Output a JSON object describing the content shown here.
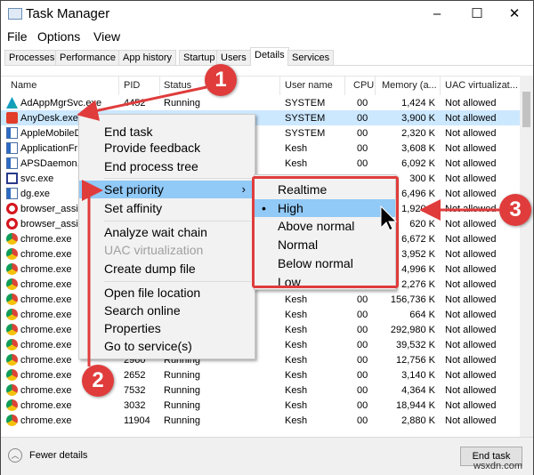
{
  "window": {
    "title": "Task Manager",
    "controls": [
      "–",
      "☐",
      "✕"
    ]
  },
  "menubar": [
    "File",
    "Options",
    "View"
  ],
  "tabs": [
    {
      "label": "Processes"
    },
    {
      "label": "Performance"
    },
    {
      "label": "App history"
    },
    {
      "label": "Startup"
    },
    {
      "label": "Users"
    },
    {
      "label": "Details",
      "active": true
    },
    {
      "label": "Services"
    }
  ],
  "columns": [
    "Name",
    "PID",
    "Status",
    "User name",
    "CPU",
    "Memory (a...",
    "UAC virtualizat..."
  ],
  "rows": [
    {
      "name": "AdAppMgrSvc.exe",
      "pid": "4452",
      "status": "Running",
      "user": "SYSTEM",
      "cpu": "00",
      "mem": "1,424 K",
      "uac": "Not allowed",
      "icon": "autodesk"
    },
    {
      "name": "AnyDesk.exe",
      "pid": "4100",
      "status": "Running",
      "user": "SYSTEM",
      "cpu": "00",
      "mem": "3,900 K",
      "uac": "Not allowed",
      "icon": "anydesk",
      "selected": true
    },
    {
      "name": "AppleMobileD",
      "pid": "",
      "status": "",
      "user": "SYSTEM",
      "cpu": "00",
      "mem": "2,320 K",
      "uac": "Not allowed",
      "icon": "app"
    },
    {
      "name": "ApplicationFr",
      "pid": "",
      "status": "",
      "user": "Kesh",
      "cpu": "00",
      "mem": "3,608 K",
      "uac": "Not allowed",
      "icon": "app"
    },
    {
      "name": "APSDaemon.exe",
      "pid": "",
      "status": "",
      "user": "Kesh",
      "cpu": "00",
      "mem": "6,092 K",
      "uac": "Not allowed",
      "icon": "app"
    },
    {
      "name": "svc.exe",
      "pid": "",
      "status": "",
      "user": "",
      "cpu": "",
      "mem": "300 K",
      "uac": "Not allowed",
      "icon": "window"
    },
    {
      "name": "dg.exe",
      "pid": "",
      "status": "",
      "user": "",
      "cpu": "",
      "mem": "6,496 K",
      "uac": "Not allowed",
      "icon": "app"
    },
    {
      "name": "browser_assis",
      "pid": "",
      "status": "",
      "user": "",
      "cpu": "",
      "mem": "1,920 K",
      "uac": "Not allowed",
      "icon": "opera"
    },
    {
      "name": "browser_assis",
      "pid": "",
      "status": "",
      "user": "",
      "cpu": "",
      "mem": "620 K",
      "uac": "Not allowed",
      "icon": "opera"
    },
    {
      "name": "chrome.exe",
      "pid": "",
      "status": "",
      "user": "",
      "cpu": "",
      "mem": "6,672 K",
      "uac": "Not allowed",
      "icon": "chrome"
    },
    {
      "name": "chrome.exe",
      "pid": "",
      "status": "",
      "user": "",
      "cpu": "",
      "mem": "3,952 K",
      "uac": "Not allowed",
      "icon": "chrome"
    },
    {
      "name": "chrome.exe",
      "pid": "",
      "status": "",
      "user": "",
      "cpu": "",
      "mem": "4,996 K",
      "uac": "Not allowed",
      "icon": "chrome"
    },
    {
      "name": "chrome.exe",
      "pid": "",
      "status": "",
      "user": "",
      "cpu": "",
      "mem": "2,276 K",
      "uac": "Not allowed",
      "icon": "chrome"
    },
    {
      "name": "chrome.exe",
      "pid": "",
      "status": "",
      "user": "Kesh",
      "cpu": "00",
      "mem": "156,736 K",
      "uac": "Not allowed",
      "icon": "chrome"
    },
    {
      "name": "chrome.exe",
      "pid": "",
      "status": "",
      "user": "Kesh",
      "cpu": "00",
      "mem": "664 K",
      "uac": "Not allowed",
      "icon": "chrome"
    },
    {
      "name": "chrome.exe",
      "pid": "",
      "status": "",
      "user": "Kesh",
      "cpu": "00",
      "mem": "292,980 K",
      "uac": "Not allowed",
      "icon": "chrome"
    },
    {
      "name": "chrome.exe",
      "pid": "",
      "status": "",
      "user": "Kesh",
      "cpu": "00",
      "mem": "39,532 K",
      "uac": "Not allowed",
      "icon": "chrome"
    },
    {
      "name": "chrome.exe",
      "pid": "2960",
      "status": "Running",
      "user": "Kesh",
      "cpu": "00",
      "mem": "12,756 K",
      "uac": "Not allowed",
      "icon": "chrome"
    },
    {
      "name": "chrome.exe",
      "pid": "2652",
      "status": "Running",
      "user": "Kesh",
      "cpu": "00",
      "mem": "3,140 K",
      "uac": "Not allowed",
      "icon": "chrome"
    },
    {
      "name": "chrome.exe",
      "pid": "7532",
      "status": "Running",
      "user": "Kesh",
      "cpu": "00",
      "mem": "4,364 K",
      "uac": "Not allowed",
      "icon": "chrome"
    },
    {
      "name": "chrome.exe",
      "pid": "3032",
      "status": "Running",
      "user": "Kesh",
      "cpu": "00",
      "mem": "18,944 K",
      "uac": "Not allowed",
      "icon": "chrome"
    },
    {
      "name": "chrome.exe",
      "pid": "11904",
      "status": "Running",
      "user": "Kesh",
      "cpu": "00",
      "mem": "2,880 K",
      "uac": "Not allowed",
      "icon": "chrome"
    }
  ],
  "context_menu": [
    {
      "label": "End task"
    },
    {
      "label": "Provide feedback"
    },
    {
      "label": "End process tree"
    },
    {
      "sep": true
    },
    {
      "label": "Set priority",
      "submenu": true,
      "highlighted": true
    },
    {
      "label": "Set affinity"
    },
    {
      "sep": true
    },
    {
      "label": "Analyze wait chain"
    },
    {
      "label": "UAC virtualization",
      "disabled": true
    },
    {
      "label": "Create dump file"
    },
    {
      "sep": true
    },
    {
      "label": "Open file location"
    },
    {
      "label": "Search online"
    },
    {
      "label": "Properties"
    },
    {
      "label": "Go to service(s)"
    }
  ],
  "priority_submenu": [
    {
      "label": "Realtime"
    },
    {
      "label": "High",
      "checked": true,
      "highlighted": true
    },
    {
      "label": "Above normal"
    },
    {
      "label": "Normal"
    },
    {
      "label": "Below normal"
    },
    {
      "label": "Low"
    }
  ],
  "footer": {
    "fewer_details": "Fewer details",
    "end_task": "End task"
  },
  "annotations": [
    "1",
    "2",
    "3"
  ],
  "watermark": "wsxdn.com",
  "colors": {
    "selection": "#cce8ff",
    "menu_highlight": "#91c9f7",
    "annotation": "#e03c3c"
  }
}
